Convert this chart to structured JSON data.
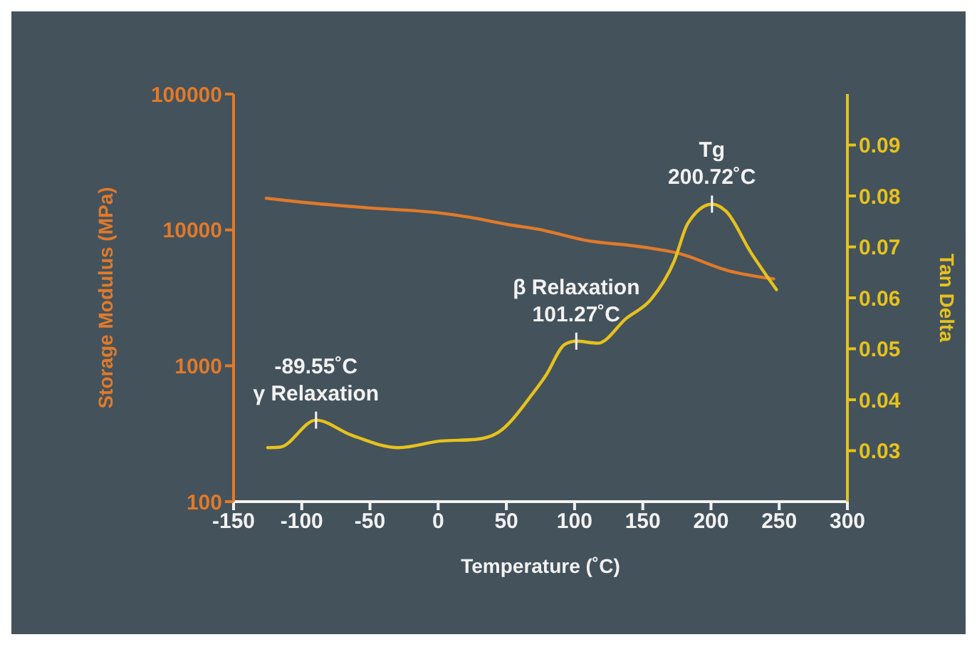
{
  "chart_data": {
    "type": "line",
    "xlabel": "Temperature (˚C)",
    "ylabel": "Storage Modulus (MPa)",
    "y2label": "Tan Delta",
    "xlim": [
      -150,
      300
    ],
    "xticks": [
      -150,
      -100,
      -50,
      0,
      50,
      100,
      150,
      200,
      250,
      300
    ],
    "ylim": [
      100,
      100000
    ],
    "yticks": [
      100,
      1000,
      10000,
      100000
    ],
    "log": "y",
    "y2lim": [
      0.02,
      0.1
    ],
    "y2ticks": [
      0.03,
      0.04,
      0.05,
      0.06,
      0.07,
      0.08,
      0.09
    ],
    "grid": false,
    "legend": false,
    "marker": "none",
    "line_style": "solid",
    "series": [
      {
        "color": "#e07a2a",
        "x": [
          -126,
          -100,
          -50,
          -1,
          23,
          50,
          76,
          107,
          150,
          176,
          213,
          246
        ],
        "values": [
          17100,
          16000,
          14500,
          13400,
          12400,
          11000,
          10000,
          8430,
          7480,
          6730,
          5000,
          4360
        ]
      },
      {
        "color": "#e6c21c",
        "axis": "y2",
        "x": [
          -125,
          -116,
          -89.55,
          -64,
          -29,
          2,
          27,
          44,
          69,
          79,
          93,
          101.27,
          117,
          138,
          156,
          173,
          183,
          200.72,
          211,
          229,
          248
        ],
        "values": [
          0.0306,
          0.0307,
          0.036,
          0.0331,
          0.0306,
          0.0319,
          0.0322,
          0.0336,
          0.0411,
          0.0448,
          0.0509,
          0.0515,
          0.0511,
          0.056,
          0.0597,
          0.0672,
          0.0746,
          0.0784,
          0.077,
          0.069,
          0.0616
        ]
      }
    ],
    "annotations": [
      "-89.55˚C\nγ Relaxation",
      "β Relaxation\n101.27˚C",
      "Tg\n200.72˚C"
    ]
  }
}
